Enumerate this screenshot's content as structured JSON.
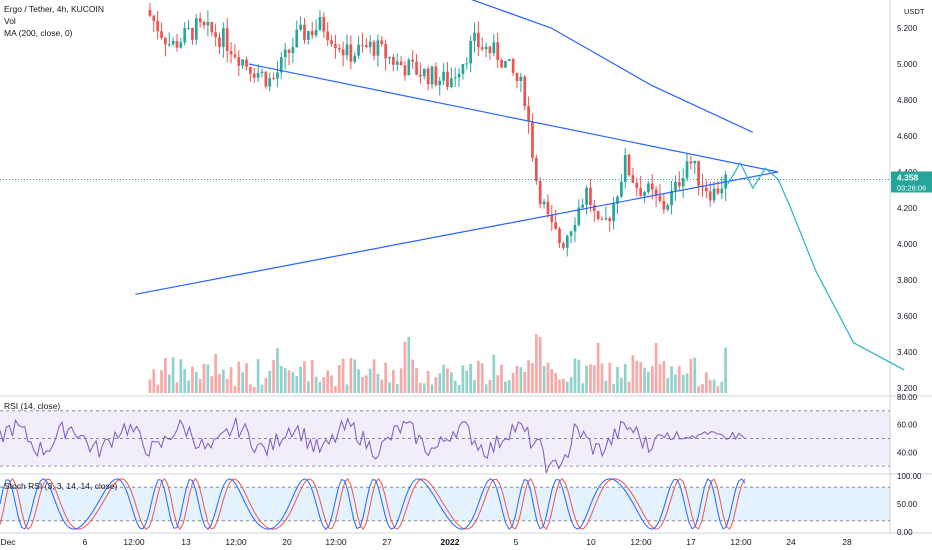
{
  "header": {
    "title": "Ergo / Tether, 4h, KUCOIN",
    "vol_label": "Vol",
    "ma_label": "MA (200, close, 0)"
  },
  "price_axis": {
    "currency": "USDT",
    "ticks": [
      "5.200",
      "5.000",
      "4.800",
      "4.600",
      "4.400",
      "4.200",
      "4.000",
      "3.800",
      "3.600",
      "3.400",
      "3.200"
    ],
    "current_price": "4.358",
    "countdown": "03:26:06"
  },
  "rsi_panel": {
    "label": "RSI (14, close)",
    "ticks": [
      "80.00",
      "60.00",
      "40.00"
    ]
  },
  "stoch_panel": {
    "label": "Stoch RSI (3, 3, 14, 14, close)",
    "ticks": [
      "100.00",
      "50.00",
      "0.00"
    ]
  },
  "time_axis": {
    "labels": [
      "Dec",
      "6",
      "12:00",
      "13",
      "12:00",
      "20",
      "12:00",
      "27",
      "2022",
      "5",
      "10",
      "12:00",
      "17",
      "12:00",
      "24",
      "28"
    ]
  },
  "colors": {
    "up": "#26a69a",
    "down": "#ef5350",
    "ma": "#2962ff",
    "trendline": "#2962ff",
    "projection": "#26b3c9",
    "rsi": "#7e57c2",
    "stoch_k": "#2962ff",
    "stoch_d": "#ef5350",
    "price_tag": "#26a69a"
  },
  "chart_data": {
    "type": "candlestick",
    "title": "Ergo / Tether, 4h, KUCOIN",
    "y_range": [
      3.16,
      5.3
    ],
    "current_price": 4.358,
    "ma200": [
      [
        15,
        5.5
      ],
      [
        21,
        5.2
      ],
      [
        25,
        4.88
      ],
      [
        29,
        4.62
      ]
    ],
    "triangle_upper": [
      [
        9,
        5.0
      ],
      [
        30,
        4.4
      ]
    ],
    "triangle_lower": [
      [
        4.5,
        3.72
      ],
      [
        30,
        4.4
      ]
    ],
    "projection": [
      [
        28,
        4.33
      ],
      [
        28.5,
        4.45
      ],
      [
        29,
        4.31
      ],
      [
        29.5,
        4.42
      ],
      [
        30,
        4.36
      ],
      [
        30.5,
        4.2
      ],
      [
        31.5,
        3.85
      ],
      [
        33,
        3.45
      ],
      [
        35,
        3.3
      ]
    ],
    "rsi_range": [
      25,
      80
    ],
    "rsi_levels": [
      70,
      50,
      30
    ],
    "stoch_range": [
      0,
      100
    ],
    "stoch_levels": [
      80,
      20
    ]
  }
}
